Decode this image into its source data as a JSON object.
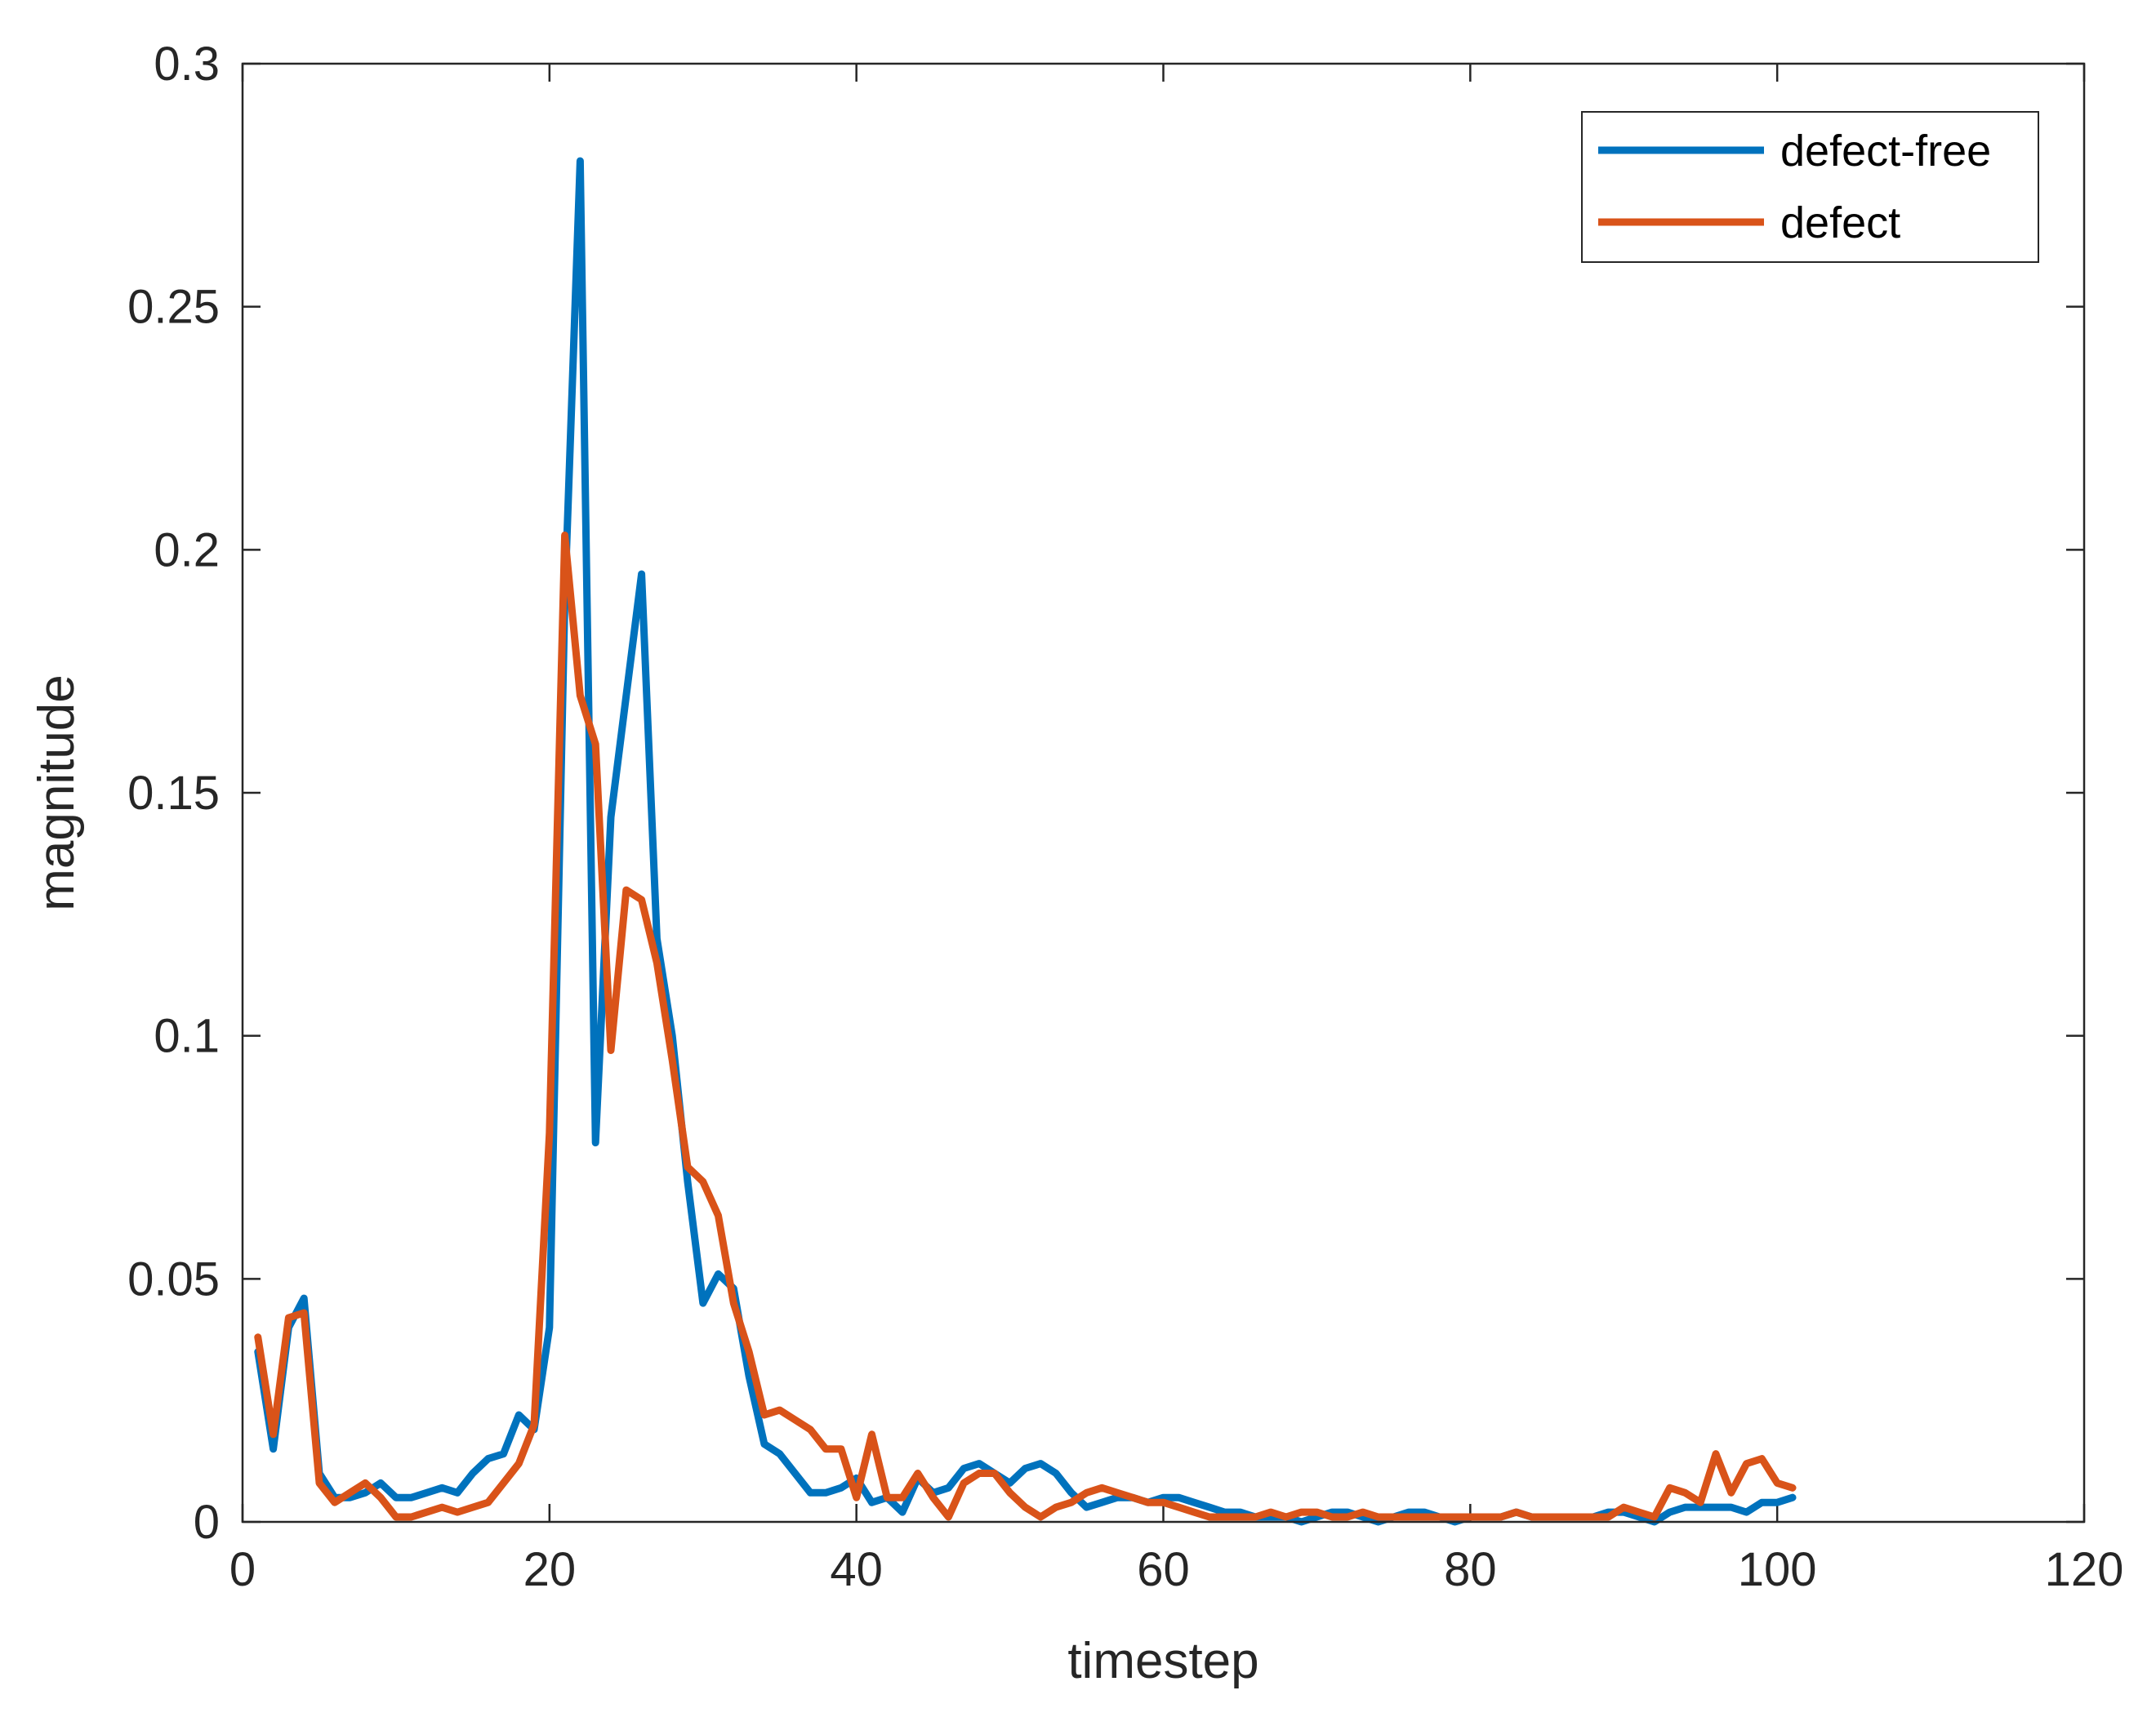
{
  "chart_data": {
    "type": "line",
    "title": "",
    "xlabel": "timestep",
    "ylabel": "magnitude",
    "xlim": [
      0,
      120
    ],
    "ylim": [
      0,
      0.3
    ],
    "xticks": [
      0,
      20,
      40,
      60,
      80,
      100,
      120
    ],
    "yticks": [
      0,
      0.05,
      0.1,
      0.15,
      0.2,
      0.25,
      0.3
    ],
    "xtick_labels": [
      "0",
      "20",
      "40",
      "60",
      "80",
      "100",
      "120"
    ],
    "ytick_labels": [
      "0",
      "0.05",
      "0.1",
      "0.15",
      "0.2",
      "0.25",
      "0.3"
    ],
    "grid": false,
    "legend_position": "top-right",
    "x": [
      1,
      2,
      3,
      4,
      5,
      6,
      7,
      8,
      9,
      10,
      11,
      12,
      13,
      14,
      15,
      16,
      17,
      18,
      19,
      20,
      21,
      22,
      23,
      24,
      25,
      26,
      27,
      28,
      29,
      30,
      31,
      32,
      33,
      34,
      35,
      36,
      37,
      38,
      39,
      40,
      41,
      42,
      43,
      44,
      45,
      46,
      47,
      48,
      49,
      50,
      51,
      52,
      53,
      54,
      55,
      56,
      57,
      58,
      59,
      60,
      61,
      62,
      63,
      64,
      65,
      66,
      67,
      68,
      69,
      70,
      71,
      72,
      73,
      74,
      75,
      76,
      77,
      78,
      79,
      80,
      81,
      82,
      83,
      84,
      85,
      86,
      87,
      88,
      89,
      90,
      91,
      92,
      93,
      94,
      95,
      96,
      97,
      98,
      99,
      100,
      101
    ],
    "series": [
      {
        "name": "defect-free",
        "color": "#0072BD",
        "values": [
          0.035,
          0.015,
          0.04,
          0.046,
          0.01,
          0.005,
          0.005,
          0.006,
          0.008,
          0.005,
          0.005,
          0.006,
          0.007,
          0.006,
          0.01,
          0.013,
          0.014,
          0.022,
          0.019,
          0.04,
          0.19,
          0.28,
          0.078,
          0.145,
          0.17,
          0.195,
          0.12,
          0.1,
          0.07,
          0.045,
          0.051,
          0.048,
          0.03,
          0.016,
          0.014,
          0.01,
          0.006,
          0.006,
          0.007,
          0.009,
          0.004,
          0.005,
          0.002,
          0.009,
          0.006,
          0.007,
          0.011,
          0.012,
          0.01,
          0.008,
          0.011,
          0.012,
          0.01,
          0.006,
          0.003,
          0.004,
          0.005,
          0.005,
          0.004,
          0.005,
          0.005,
          0.004,
          0.003,
          0.002,
          0.002,
          0.001,
          0.001,
          0.001,
          0.0,
          0.001,
          0.002,
          0.002,
          0.001,
          0.0,
          0.001,
          0.002,
          0.002,
          0.001,
          0.0,
          0.001,
          0.001,
          0.001,
          0.002,
          0.001,
          0.001,
          0.001,
          0.001,
          0.001,
          0.002,
          0.002,
          0.001,
          0.0,
          0.002,
          0.003,
          0.003,
          0.003,
          0.003,
          0.002,
          0.004,
          0.004,
          0.005
        ]
      },
      {
        "name": "defect",
        "color": "#D95319",
        "values": [
          0.038,
          0.018,
          0.042,
          0.043,
          0.008,
          0.004,
          0.006,
          0.008,
          0.005,
          0.001,
          0.001,
          0.002,
          0.003,
          0.002,
          0.003,
          0.004,
          0.008,
          0.012,
          0.02,
          0.08,
          0.203,
          0.17,
          0.16,
          0.097,
          0.13,
          0.128,
          0.115,
          0.095,
          0.073,
          0.07,
          0.063,
          0.045,
          0.035,
          0.022,
          0.023,
          0.021,
          0.019,
          0.015,
          0.015,
          0.005,
          0.018,
          0.005,
          0.005,
          0.01,
          0.005,
          0.001,
          0.008,
          0.01,
          0.01,
          0.006,
          0.003,
          0.001,
          0.003,
          0.004,
          0.006,
          0.007,
          0.006,
          0.005,
          0.004,
          0.004,
          0.003,
          0.002,
          0.001,
          0.001,
          0.001,
          0.001,
          0.002,
          0.001,
          0.002,
          0.002,
          0.001,
          0.001,
          0.002,
          0.001,
          0.001,
          0.001,
          0.001,
          0.001,
          0.001,
          0.001,
          0.001,
          0.001,
          0.002,
          0.001,
          0.001,
          0.001,
          0.001,
          0.001,
          0.001,
          0.003,
          0.002,
          0.001,
          0.007,
          0.006,
          0.004,
          0.014,
          0.006,
          0.012,
          0.013,
          0.008,
          0.007
        ]
      }
    ]
  }
}
